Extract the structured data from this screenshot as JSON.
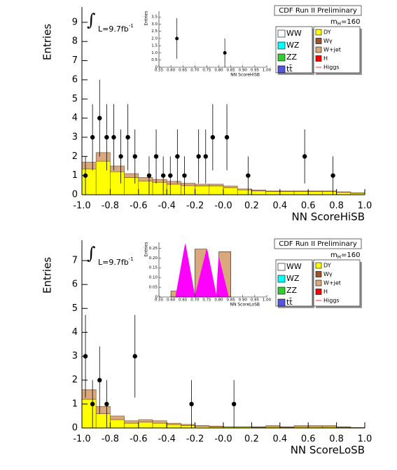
{
  "chart_data": [
    {
      "type": "stacked-histogram-with-points",
      "banner": "CDF Run II Preliminary",
      "mass_label": [
        "m",
        "H",
        "=160"
      ],
      "lumi_label": [
        "∫",
        "L=9.7fb",
        "-1"
      ],
      "x_label": "NN ScoreHiSB",
      "y_label": "Entries",
      "xlim": [
        -1.0,
        1.0
      ],
      "ylim": [
        0,
        9.8
      ],
      "xticks": [
        {
          "value": -1.0,
          "label": "-1.0"
        },
        {
          "value": -0.8,
          "label": "-0.8"
        },
        {
          "value": -0.6,
          "label": "-0.6"
        },
        {
          "value": -0.4,
          "label": "-0.4"
        },
        {
          "value": -0.2,
          "label": "-0.2"
        },
        {
          "value": 0,
          "label": "-0.0"
        },
        0.2,
        0.4,
        0.6,
        0.8,
        {
          "value": 1.0,
          "label": "1.0"
        }
      ],
      "yticks": [
        0,
        1,
        2,
        3,
        4,
        5,
        6,
        7,
        8,
        9
      ],
      "bins": [
        -1.0,
        -0.9,
        -0.8,
        -0.7,
        -0.6,
        -0.5,
        -0.4,
        -0.3,
        -0.2,
        -0.1,
        0,
        0.1,
        0.2,
        0.3,
        0.4,
        0.5,
        0.6,
        0.7,
        0.8,
        0.9,
        1.0
      ],
      "series": [
        {
          "name": "DY",
          "color": "#ffff00",
          "values": [
            1.35,
            1.75,
            1.2,
            0.9,
            0.72,
            0.65,
            0.55,
            0.48,
            0.45,
            0.45,
            0.37,
            0.25,
            0.2,
            0.16,
            0.16,
            0.16,
            0.16,
            0.16,
            0.12,
            0.08
          ]
        },
        {
          "name": "W+jet",
          "color": "#d9a87c",
          "values": [
            0.35,
            0.45,
            0.3,
            0.2,
            0.18,
            0.15,
            0.15,
            0.12,
            0.1,
            0.1,
            0.08,
            0.05,
            0.05,
            0.04,
            0.04,
            0.04,
            0.04,
            0.04,
            0.03,
            0.02
          ]
        }
      ],
      "points": {
        "x": [
          -0.975,
          -0.925,
          -0.875,
          -0.825,
          -0.775,
          -0.725,
          -0.675,
          -0.625,
          -0.525,
          -0.475,
          -0.425,
          -0.375,
          -0.325,
          -0.275,
          -0.175,
          -0.125,
          -0.075,
          0.025,
          0.175,
          0.575,
          0.775
        ],
        "values": [
          1,
          3,
          4,
          3,
          3,
          2,
          3,
          2,
          1,
          2,
          1,
          1,
          2,
          1,
          2,
          2,
          3,
          3,
          1,
          2,
          1
        ],
        "errors": [
          1,
          1.73,
          2,
          1.73,
          1.73,
          1.41,
          1.73,
          1.41,
          1,
          1.41,
          1,
          1,
          1.41,
          1,
          1.41,
          1.41,
          1.73,
          1.73,
          1,
          1.41,
          1
        ]
      },
      "legend": [
        {
          "name": "WW",
          "color": "#ffffff"
        },
        {
          "name": "WZ",
          "color": "#00ffff"
        },
        {
          "name": "ZZ",
          "color": "#33cc33"
        },
        {
          "name": "tt̄",
          "color": "#5555dd"
        },
        {
          "name": "DY",
          "color": "#ffff00"
        },
        {
          "name": "Wγ",
          "color": "#a0522d"
        },
        {
          "name": "W+jet",
          "color": "#d9a87c"
        },
        {
          "name": "H",
          "color": "#ff0000"
        },
        {
          "name": "Higgs",
          "color": "#ff3333",
          "marker": "line"
        }
      ],
      "inset": {
        "x_label": "NN ScoreHiSB",
        "y_label": "Entries",
        "xlim": [
          0.55,
          1.0
        ],
        "ylim": [
          0,
          3.9
        ],
        "xticks": [
          {
            "value": 0.55,
            "label": "0.55"
          },
          {
            "value": 0.6,
            "label": "0.60"
          },
          0.65,
          {
            "value": 0.7,
            "label": "0.70"
          },
          0.75,
          {
            "value": 0.8,
            "label": "0.80"
          },
          0.85,
          {
            "value": 0.9,
            "label": "0.90"
          },
          0.95,
          {
            "value": 1.0,
            "label": "1.00"
          }
        ],
        "yticks": [
          0,
          0.5,
          {
            "value": 1,
            "label": "1.0"
          },
          1.5,
          {
            "value": 2,
            "label": "2.0"
          },
          2.5,
          {
            "value": 3,
            "label": "3.0"
          },
          3.5
        ],
        "points": {
          "x": [
            0.625,
            0.825
          ],
          "values": [
            2.0,
            1.0
          ],
          "errors": [
            1.41,
            1.0
          ]
        }
      }
    },
    {
      "type": "stacked-histogram-with-points",
      "banner": "CDF Run II Preliminary",
      "mass_label": [
        "m",
        "H",
        "=160"
      ],
      "lumi_label": [
        "∫",
        "L=9.7fb",
        "-1"
      ],
      "x_label": "NN ScoreLoSB",
      "y_label": "Entries",
      "xlim": [
        -1.0,
        1.0
      ],
      "ylim": [
        0,
        7.85
      ],
      "xticks": [
        {
          "value": -1.0,
          "label": "-1.0"
        },
        {
          "value": -0.8,
          "label": "-0.8"
        },
        {
          "value": -0.6,
          "label": "-0.6"
        },
        {
          "value": -0.4,
          "label": "-0.4"
        },
        {
          "value": -0.2,
          "label": "-0.2"
        },
        {
          "value": 0,
          "label": "-0.0"
        },
        0.2,
        0.4,
        0.6,
        0.8,
        {
          "value": 1.0,
          "label": "1.0"
        }
      ],
      "yticks": [
        0,
        1,
        2,
        3,
        4,
        5,
        6,
        7
      ],
      "bins": [
        -1.0,
        -0.9,
        -0.8,
        -0.7,
        -0.6,
        -0.5,
        -0.4,
        -0.3,
        -0.2,
        -0.1,
        0,
        0.1,
        0.2,
        0.3,
        0.4,
        0.5,
        0.6,
        0.7,
        0.8,
        0.9,
        1.0
      ],
      "series": [
        {
          "name": "DY",
          "color": "#ffff00",
          "values": [
            1.2,
            0.6,
            0.35,
            0.2,
            0.25,
            0.2,
            0.14,
            0.1,
            0.07,
            0.05,
            0.04,
            0.04,
            0.03,
            0.05,
            0.03,
            0.05,
            0.05,
            0.05,
            0.03,
            0.01
          ]
        },
        {
          "name": "W+jet",
          "color": "#d9a87c",
          "values": [
            0.4,
            0.3,
            0.15,
            0.1,
            0.1,
            0.1,
            0.06,
            0.05,
            0.03,
            0.03,
            0.01,
            0.01,
            0.02,
            0.05,
            0.02,
            0.05,
            0.05,
            0.05,
            0.02,
            0.01
          ]
        }
      ],
      "points": {
        "x": [
          -0.975,
          -0.925,
          -0.875,
          -0.825,
          -0.625,
          -0.225,
          0.075
        ],
        "values": [
          3,
          1,
          2,
          1,
          3,
          1,
          1
        ],
        "errors": [
          1.73,
          1,
          1.41,
          1,
          1.73,
          1,
          1
        ]
      },
      "legend": [
        {
          "name": "WW",
          "color": "#ffffff"
        },
        {
          "name": "WZ",
          "color": "#00ffff"
        },
        {
          "name": "ZZ",
          "color": "#33cc33"
        },
        {
          "name": "tt̄",
          "color": "#5555dd"
        },
        {
          "name": "DY",
          "color": "#ffff00"
        },
        {
          "name": "Wγ",
          "color": "#a0522d"
        },
        {
          "name": "W+jet",
          "color": "#d9a87c"
        },
        {
          "name": "H",
          "color": "#ff0000"
        },
        {
          "name": "Higgs",
          "color": "#ff3333",
          "marker": "line"
        }
      ],
      "inset": {
        "x_label": "NN ScoreLoSB",
        "y_label": "Entries",
        "xlim": [
          0.55,
          1.0
        ],
        "ylim": [
          0,
          0.28
        ],
        "xticks": [
          {
            "value": 0.55,
            "label": "0.55"
          },
          {
            "value": 0.6,
            "label": "0.60"
          },
          0.65,
          {
            "value": 0.7,
            "label": "0.70"
          },
          0.75,
          {
            "value": 0.8,
            "label": "0.80"
          },
          0.85,
          {
            "value": 0.9,
            "label": "0.90"
          },
          0.95,
          {
            "value": 1.0,
            "label": "1.00"
          }
        ],
        "yticks": [
          0,
          0.05,
          {
            "value": 0.1,
            "label": "0.10"
          },
          0.15,
          {
            "value": 0.2,
            "label": "0.20"
          },
          0.25
        ],
        "bins": [
          0.55,
          0.6,
          0.65,
          0.7,
          0.75,
          0.8,
          0.85,
          0.9,
          0.95,
          1.0
        ],
        "bars": {
          "color": "#d9a87c",
          "values": [
            0,
            0.03,
            0,
            0.245,
            0,
            0.232,
            0,
            0,
            0
          ]
        },
        "higgs": {
          "color": "#ff00ff",
          "x": [
            0.62,
            0.66,
            0.7,
            0.75,
            0.79,
            0.8,
            0.84
          ],
          "values": [
            0,
            0.27,
            0,
            0.245,
            0,
            0.2,
            0
          ]
        }
      }
    }
  ]
}
